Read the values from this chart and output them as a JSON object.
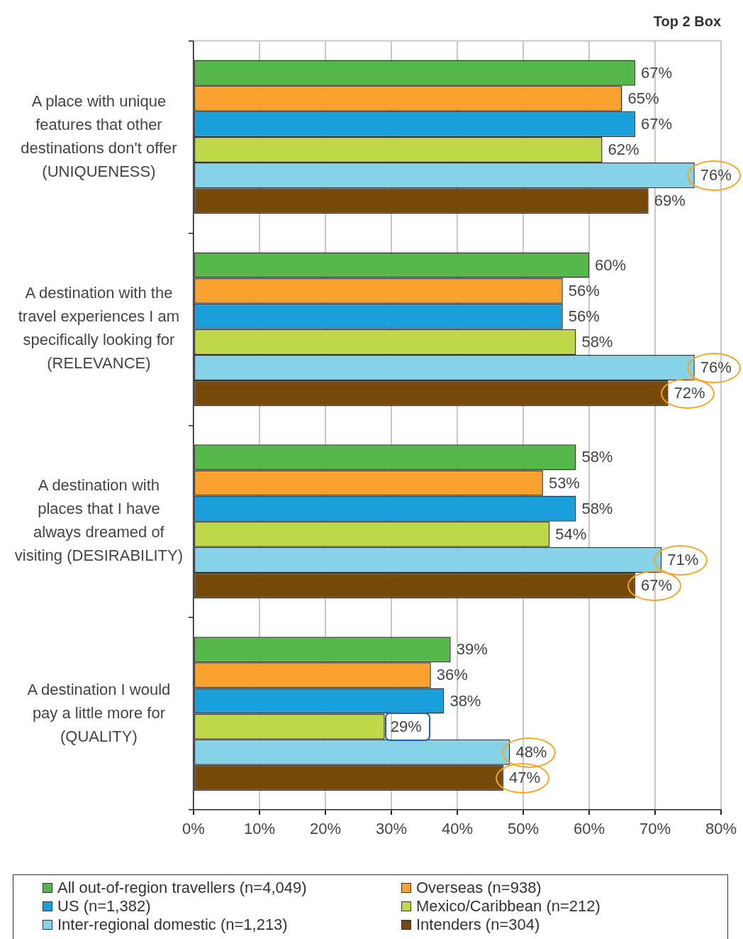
{
  "chart_data": {
    "type": "bar",
    "orientation": "horizontal",
    "title": "Top 2 Box",
    "categories": [
      "A place with unique features that other destinations don't offer (UNIQUENESS)",
      "A destination with the travel experiences I am specifically looking for (RELEVANCE)",
      "A destination with places that I have always dreamed of visiting (DESIRABILITY)",
      "A destination I would pay a little more for (QUALITY)"
    ],
    "series": [
      {
        "name": "All out-of-region travellers (n=4,049)",
        "color": "#56b84a",
        "values": [
          67,
          60,
          58,
          39
        ],
        "value_labels": [
          "67%",
          "60%",
          "58%",
          "39%"
        ]
      },
      {
        "name": "Overseas (n=938)",
        "color": "#f9a12e",
        "values": [
          65,
          56,
          53,
          36
        ],
        "value_labels": [
          "65%",
          "56%",
          "53%",
          "36%"
        ]
      },
      {
        "name": "US (n=1,382)",
        "color": "#1a9fdb",
        "values": [
          67,
          56,
          58,
          38
        ],
        "value_labels": [
          "67%",
          "56%",
          "58%",
          "38%"
        ]
      },
      {
        "name": "Mexico/Caribbean (n=212)",
        "color": "#bfd849",
        "values": [
          62,
          58,
          54,
          29
        ],
        "value_labels": [
          "62%",
          "58%",
          "54%",
          "29%"
        ]
      },
      {
        "name": "Inter-regional domestic (n=1,213)",
        "color": "#86d2e6",
        "values": [
          76,
          76,
          71,
          48
        ],
        "value_labels": [
          "76%",
          "76%",
          "71%",
          "48%"
        ]
      },
      {
        "name": "Intenders (n=304)",
        "color": "#754a0a",
        "values": [
          69,
          72,
          67,
          47
        ],
        "value_labels": [
          "69%",
          "72%",
          "67%",
          "47%"
        ]
      }
    ],
    "xlim": [
      0,
      80
    ],
    "xticks": [
      {
        "value": 0,
        "label": "0%"
      },
      {
        "value": 10,
        "label": "10%"
      },
      {
        "value": 20,
        "label": "20%"
      },
      {
        "value": 30,
        "label": "30%"
      },
      {
        "value": 40,
        "label": "40%"
      },
      {
        "value": 50,
        "label": "50%"
      },
      {
        "value": 60,
        "label": "60%"
      },
      {
        "value": 70,
        "label": "70%"
      },
      {
        "value": 80,
        "label": "80%"
      }
    ],
    "grid": "x",
    "legend": "bottom"
  }
}
